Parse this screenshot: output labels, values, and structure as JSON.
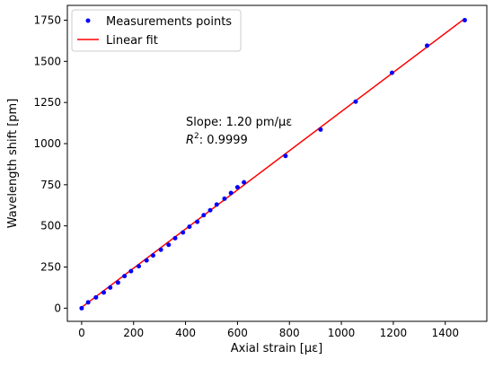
{
  "chart_data": {
    "type": "scatter",
    "xlabel": "Axial strain [με]",
    "ylabel": "Wavelength shift [pm]",
    "xlim": [
      -55,
      1560
    ],
    "ylim": [
      -80,
      1840
    ],
    "x_ticks": [
      0,
      200,
      400,
      600,
      800,
      1000,
      1200,
      1400
    ],
    "y_ticks": [
      0,
      250,
      500,
      750,
      1000,
      1250,
      1500,
      1750
    ],
    "x_tick_labels": [
      "0",
      "200",
      "400",
      "600",
      "800",
      "1000",
      "1200",
      "1400"
    ],
    "y_tick_labels": [
      "0",
      "250",
      "500",
      "750",
      "1000",
      "1250",
      "1500",
      "1750"
    ],
    "grid": false,
    "legend_position": "top-left",
    "series": [
      {
        "name": "Measurements points",
        "kind": "scatter",
        "color": "#0000ff",
        "x": [
          0,
          25,
          55,
          85,
          110,
          140,
          165,
          190,
          220,
          250,
          275,
          305,
          335,
          360,
          390,
          415,
          445,
          470,
          495,
          520,
          550,
          575,
          600,
          625,
          785,
          920,
          1055,
          1195,
          1330,
          1475
        ],
        "y": [
          0,
          35,
          65,
          95,
          125,
          155,
          195,
          225,
          255,
          290,
          320,
          355,
          385,
          425,
          460,
          495,
          525,
          565,
          595,
          630,
          665,
          700,
          735,
          765,
          925,
          1085,
          1255,
          1430,
          1595,
          1750
        ]
      },
      {
        "name": "Linear fit",
        "kind": "line",
        "color": "#ff0000",
        "x": [
          0,
          1475
        ],
        "y": [
          5,
          1760
        ]
      }
    ],
    "annotations": [
      {
        "text": "Slope: 1.20 pm/με"
      },
      {
        "text_prefix": "R",
        "text_sup": "2",
        "text_suffix": ": 0.9999"
      }
    ]
  }
}
